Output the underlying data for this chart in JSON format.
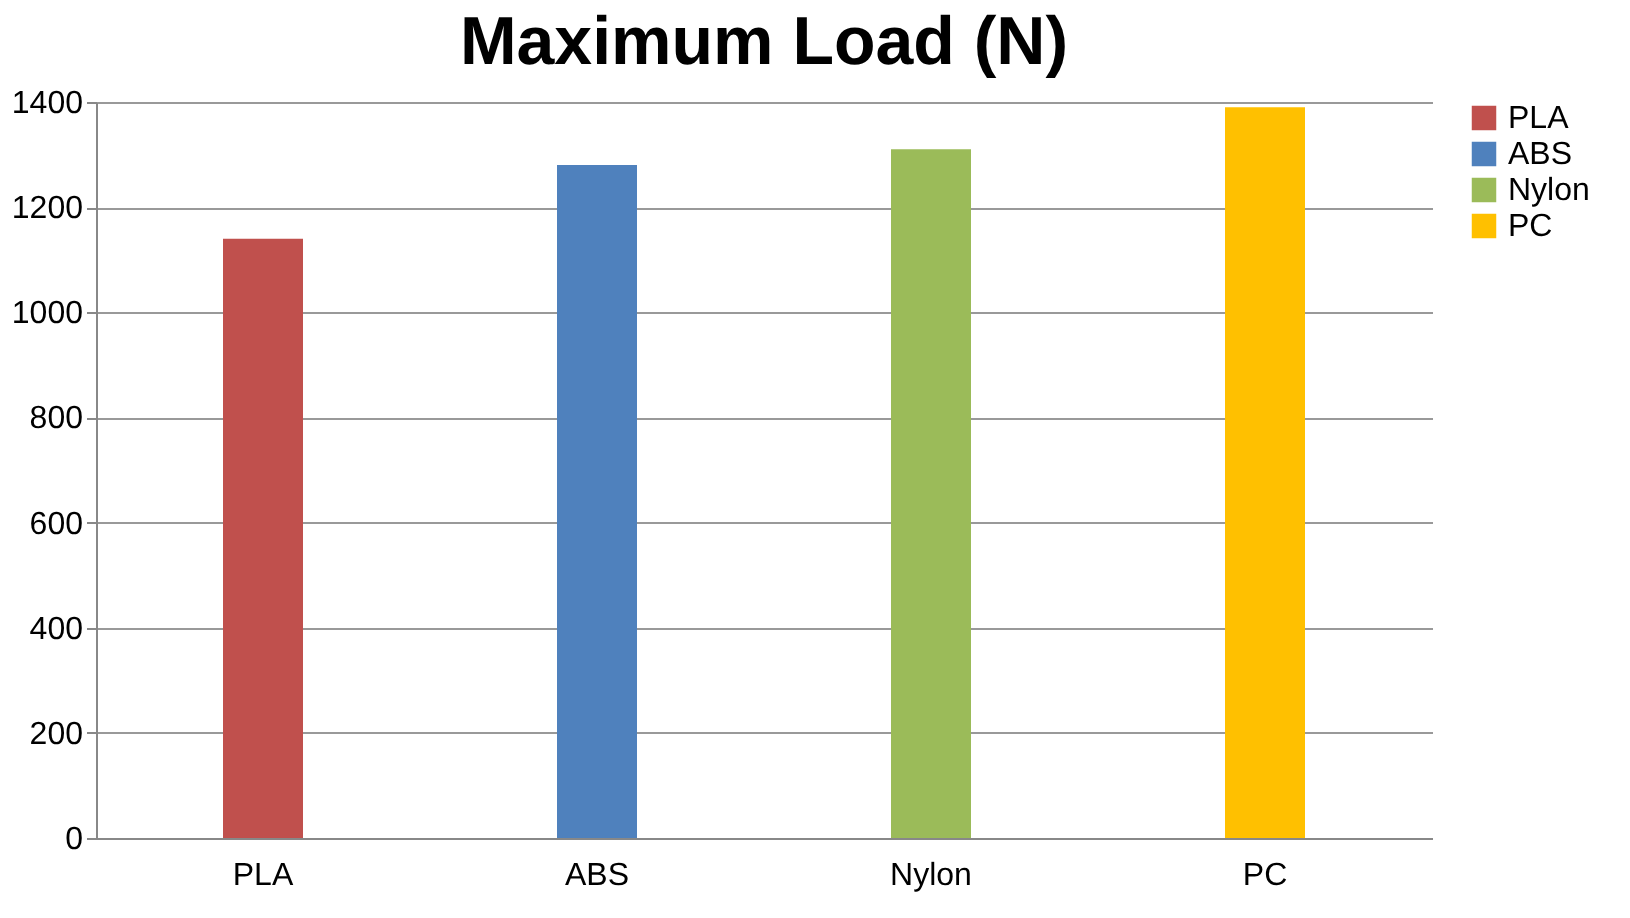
{
  "chart_data": {
    "type": "bar",
    "title": "Maximum Load (N)",
    "categories": [
      "PLA",
      "ABS",
      "Nylon",
      "PC"
    ],
    "series": [
      {
        "name": "PLA",
        "color": "#c0504d",
        "values": [
          1140,
          null,
          null,
          null
        ]
      },
      {
        "name": "ABS",
        "color": "#4f81bd",
        "values": [
          null,
          1280,
          null,
          null
        ]
      },
      {
        "name": "Nylon",
        "color": "#9bbb59",
        "values": [
          null,
          null,
          1310,
          null
        ]
      },
      {
        "name": "PC",
        "color": "#ffc000",
        "values": [
          null,
          null,
          null,
          1390
        ]
      }
    ],
    "ylim": [
      0,
      1400
    ],
    "yticks": [
      0,
      200,
      400,
      600,
      800,
      1000,
      1200,
      1400
    ],
    "grid": "y",
    "legend": "right"
  }
}
